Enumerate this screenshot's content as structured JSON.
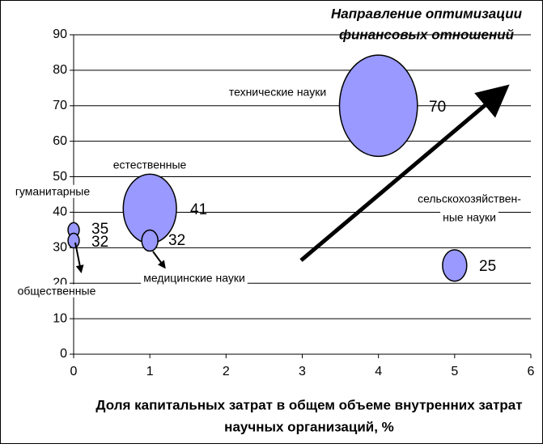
{
  "chart_data": {
    "type": "bubble",
    "annotation": [
      "Направление оптимизации",
      "финансовых отношений"
    ],
    "xlabel": [
      "Доля капитальных затрат в общем объеме внутренних затрат",
      "научных организаций, %"
    ],
    "labels": [
      [
        "гуманитарные"
      ],
      [
        "общественные"
      ],
      [
        "естественные"
      ],
      [
        "медицинские науки"
      ],
      [
        "технические науки"
      ],
      [
        "сельскохозяйствен-",
        "ные науки"
      ]
    ],
    "x": [
      0,
      0,
      1,
      1,
      4,
      5
    ],
    "values": [
      35,
      32,
      41,
      32,
      70,
      25
    ],
    "sizes": [
      0.12,
      0.12,
      2.7,
      0.25,
      5.8,
      0.56
    ],
    "color": "#9999ff",
    "xlim": [
      0,
      6
    ],
    "xticks": [
      0,
      1,
      2,
      3,
      4,
      5,
      6
    ],
    "ylim": [
      0,
      90
    ],
    "yticks": [
      0,
      10,
      20,
      30,
      40,
      50,
      60,
      70,
      80,
      90
    ],
    "grid": true
  }
}
